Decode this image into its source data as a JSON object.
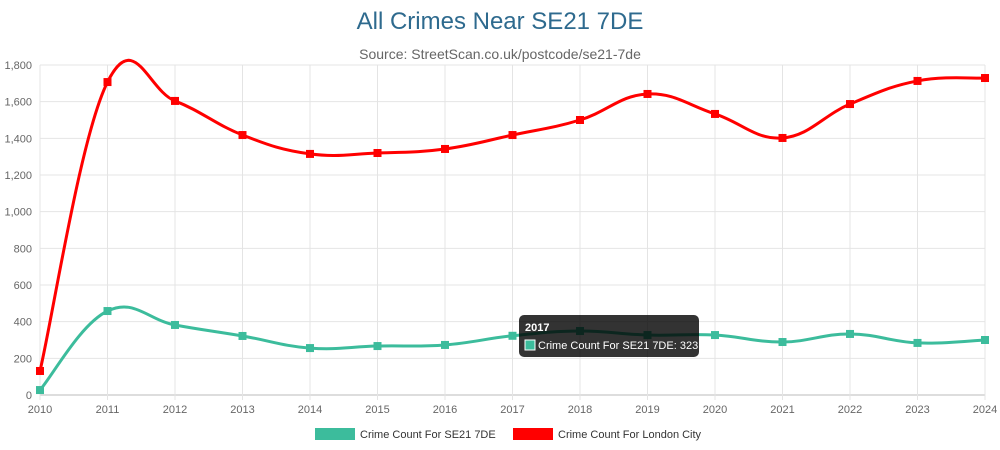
{
  "chart_data": {
    "type": "line",
    "title": "All Crimes Near SE21 7DE",
    "subtitle": "Source: StreetScan.co.uk/postcode/se21-7de",
    "categories": [
      "2010",
      "2011",
      "2012",
      "2013",
      "2014",
      "2015",
      "2016",
      "2017",
      "2018",
      "2019",
      "2020",
      "2021",
      "2022",
      "2023",
      "2024"
    ],
    "ylim": [
      0,
      1800
    ],
    "yticks": [
      "0",
      "200",
      "400",
      "600",
      "800",
      "1,000",
      "1,200",
      "1,400",
      "1,600",
      "1,800"
    ],
    "grid": true,
    "legend_position": "bottom",
    "series": [
      {
        "name": "Crime Count For SE21 7DE",
        "color": "#3cbc9c",
        "values": [
          27,
          458,
          382,
          322,
          256,
          267,
          273,
          323,
          349,
          327,
          327,
          289,
          333,
          284,
          300
        ]
      },
      {
        "name": "Crime Count For London City",
        "color": "#ff0000",
        "values": [
          131,
          1707,
          1604,
          1418,
          1315,
          1320,
          1342,
          1418,
          1500,
          1642,
          1533,
          1402,
          1587,
          1713,
          1729
        ]
      }
    ],
    "tooltip": {
      "title": "2017",
      "label": "Crime Count For SE21 7DE: 323"
    }
  }
}
